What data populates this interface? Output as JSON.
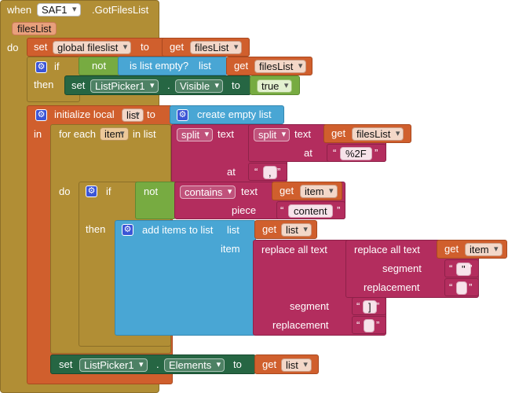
{
  "event": {
    "when": "when",
    "component": "SAF1",
    "event_name": ".GotFilesList",
    "param": "filesList",
    "do": "do"
  },
  "set_global": {
    "set": "set",
    "var_name": "global fileslist",
    "to": "to",
    "get": "get",
    "get_var": "filesList"
  },
  "if1": {
    "if": "if",
    "then": "then",
    "not": "not",
    "is_list_empty": "is list empty?",
    "list": "list",
    "get": "get",
    "get_var": "filesList",
    "set": "set",
    "component": "ListPicker1",
    "dot": ".",
    "property": "Visible",
    "to": "to",
    "value": "true"
  },
  "init_local": {
    "label": "initialize local",
    "var_name": "list",
    "to": "to",
    "create_empty_list": "create empty list",
    "in": "in"
  },
  "for_each": {
    "label": "for each",
    "item_var": "item",
    "in_list": "in list",
    "do": "do",
    "split_outer": "split",
    "text_outer": "text",
    "split_inner": "split",
    "text_inner": "text",
    "get": "get",
    "get_var": "filesList",
    "at_inner": "at",
    "at_inner_value": "%2F",
    "at_outer": "at",
    "at_outer_value": ","
  },
  "if2": {
    "if": "if",
    "then": "then",
    "not": "not",
    "contains": "contains",
    "text": "text",
    "get": "get",
    "get_var": "item",
    "piece": "piece",
    "piece_value": "content"
  },
  "add_items": {
    "label": "add items to list",
    "list": "list",
    "get": "get",
    "get_var": "list",
    "item": "item",
    "replace_outer": "replace all text",
    "replace_inner": "replace all text",
    "get2": "get",
    "get2_var": "item",
    "segment_inner": "segment",
    "segment_inner_value": "\"",
    "replacement_inner": "replacement",
    "replacement_inner_value": "",
    "segment_outer": "segment",
    "segment_outer_value": "]",
    "replacement_outer": "replacement",
    "replacement_outer_value": ""
  },
  "set_elements": {
    "set": "set",
    "component": "ListPicker1",
    "dot": ".",
    "property": "Elements",
    "to": "to",
    "get": "get",
    "get_var": "list"
  },
  "quote_open": "“",
  "quote_close": "”",
  "icons": {
    "mutator": "gear-icon",
    "dropdown": "dropdown-arrow-icon"
  },
  "colors": {
    "event": "#B18E35",
    "variables": "#D05F2D",
    "control": "#B18E35",
    "logic": "#77AB41",
    "lists": "#49A6D4",
    "text": "#B32D5E",
    "component": "#266643"
  }
}
